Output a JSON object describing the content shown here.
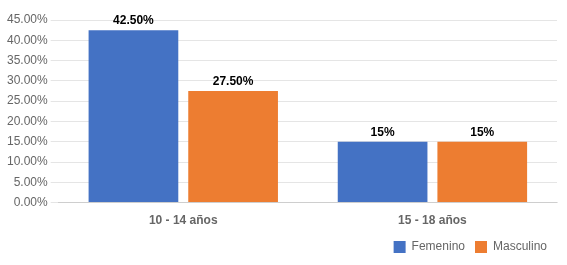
{
  "chart_data": {
    "type": "bar",
    "categories": [
      "10 - 14 años",
      "15 - 18 años"
    ],
    "series": [
      {
        "name": "Femenino",
        "color": "#4472C4",
        "values": [
          42.5,
          15.0
        ],
        "value_labels": [
          "42.50%",
          "15%"
        ]
      },
      {
        "name": "Masculino",
        "color": "#ED7D31",
        "values": [
          27.5,
          15.0
        ],
        "value_labels": [
          "27.50%",
          "15%"
        ]
      }
    ],
    "ylim": [
      0,
      45
    ],
    "yticks": [
      {
        "value": 0,
        "label": "0.00%"
      },
      {
        "value": 5,
        "label": "5.00%"
      },
      {
        "value": 10,
        "label": "10.00%"
      },
      {
        "value": 15,
        "label": "15.00%"
      },
      {
        "value": 20,
        "label": "20.00%"
      },
      {
        "value": 25,
        "label": "25.00%"
      },
      {
        "value": 30,
        "label": "30.00%"
      },
      {
        "value": 35,
        "label": "35.00%"
      },
      {
        "value": 40,
        "label": "40.00%"
      },
      {
        "value": 45,
        "label": "45.00%"
      }
    ],
    "grid": true,
    "legend": "lower right",
    "data_labels": true
  }
}
